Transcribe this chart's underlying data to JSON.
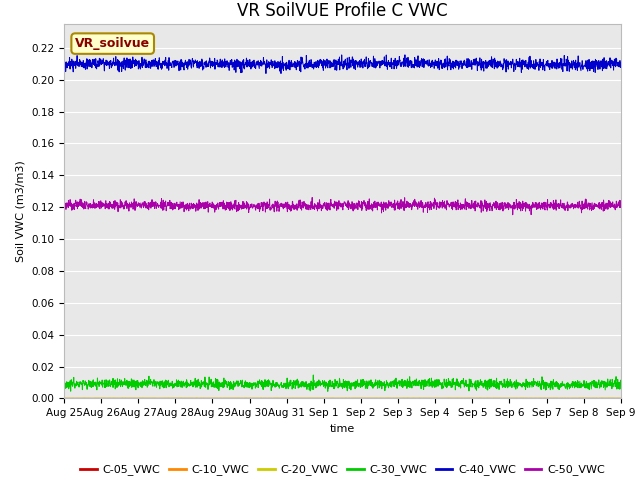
{
  "title": "VR SoilVUE Profile C VWC",
  "xlabel": "time",
  "ylabel": "Soil VWC (m3/m3)",
  "ylim": [
    0.0,
    0.235
  ],
  "yticks": [
    0.0,
    0.02,
    0.04,
    0.06,
    0.08,
    0.1,
    0.12,
    0.14,
    0.16,
    0.18,
    0.2,
    0.22
  ],
  "bg_color": "#e8e8e8",
  "series": {
    "C-05_VWC": {
      "color": "#cc0000",
      "mean": 0.0,
      "noise": 0.0
    },
    "C-10_VWC": {
      "color": "#ff8800",
      "mean": 0.0,
      "noise": 0.0
    },
    "C-20_VWC": {
      "color": "#cccc00",
      "mean": 0.0001,
      "noise": 5e-05
    },
    "C-30_VWC": {
      "color": "#00cc00",
      "mean": 0.009,
      "noise": 0.0015
    },
    "C-40_VWC": {
      "color": "#0000cc",
      "mean": 0.21,
      "noise": 0.0018
    },
    "C-50_VWC": {
      "color": "#aa00aa",
      "mean": 0.121,
      "noise": 0.0015
    }
  },
  "legend_label_box": "VR_soilvue",
  "legend_box_facecolor": "#ffffcc",
  "legend_box_edgecolor": "#aa8800",
  "legend_box_text_color": "#880000",
  "n_points": 2000,
  "xtick_labels": [
    "Aug 25",
    "Aug 26",
    "Aug 27",
    "Aug 28",
    "Aug 29",
    "Aug 30",
    "Aug 31",
    "Sep 1",
    "Sep 2",
    "Sep 3",
    "Sep 4",
    "Sep 5",
    "Sep 6",
    "Sep 7",
    "Sep 8",
    "Sep 9"
  ],
  "grid_color": "#ffffff",
  "title_fontsize": 12,
  "label_fontsize": 8,
  "tick_fontsize": 7.5,
  "legend_fontsize": 8
}
